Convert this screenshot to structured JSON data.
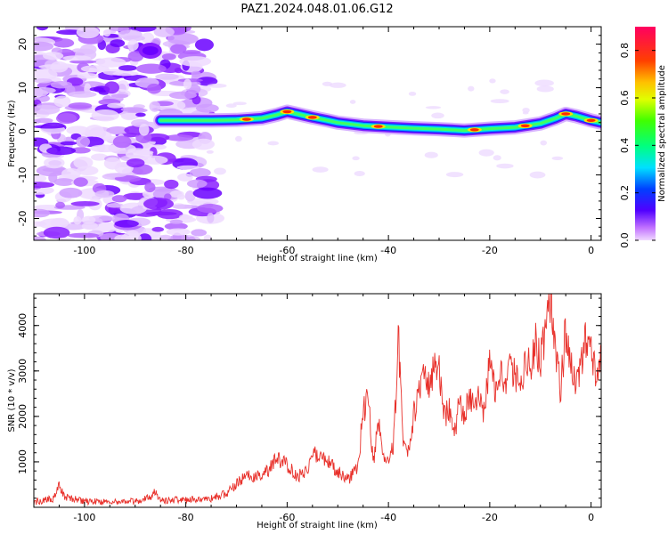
{
  "title": "PAZ1.2024.048.01.06.G12",
  "chart_data": [
    {
      "type": "heatmap",
      "xlabel": "Height of straight line (km)",
      "ylabel": "Frequency (Hz)",
      "xlim": [
        -110,
        2
      ],
      "ylim": [
        -25,
        24
      ],
      "xticks": [
        -100,
        -80,
        -60,
        -40,
        -20,
        0
      ],
      "yticks": [
        -20,
        -10,
        0,
        10,
        20
      ],
      "colorbar": {
        "label": "Normalized spectral amplitude",
        "range": [
          0,
          0.9
        ],
        "ticks": [
          0.0,
          0.2,
          0.4,
          0.6,
          0.8
        ],
        "colormap": "gist_rainbow_r"
      },
      "ridge": {
        "x": [
          -85,
          -80,
          -75,
          -70,
          -65,
          -62,
          -60,
          -58,
          -55,
          -52,
          -50,
          -45,
          -40,
          -35,
          -30,
          -25,
          -20,
          -15,
          -10,
          -7,
          -5,
          -3,
          0,
          2
        ],
        "y": [
          2.5,
          2.5,
          2.5,
          2.6,
          3.0,
          3.8,
          4.5,
          4.0,
          3.2,
          2.5,
          2.0,
          1.3,
          1.0,
          0.7,
          0.5,
          0.2,
          0.6,
          0.9,
          1.8,
          3.0,
          4.0,
          3.5,
          2.5,
          2.0
        ]
      },
      "peaks_x": [
        -68,
        -60,
        -55,
        -42,
        -23,
        -13,
        -5,
        0
      ]
    },
    {
      "type": "line",
      "xlabel": "Height of straight line (km)",
      "ylabel": "SNR (10 * v/v)",
      "xlim": [
        -110,
        2
      ],
      "ylim": [
        0,
        4700
      ],
      "xticks": [
        -100,
        -80,
        -60,
        -40,
        -20,
        0
      ],
      "yticks": [
        1000,
        2000,
        3000,
        4000
      ],
      "color": "#e8302a",
      "series": [
        {
          "x": [
            -110,
            -108,
            -106,
            -105,
            -104,
            -100,
            -95,
            -90,
            -87,
            -86,
            -85,
            -80,
            -75,
            -72,
            -70,
            -68,
            -66,
            -64,
            -62,
            -60,
            -58,
            -56,
            -55,
            -54,
            -52,
            -50,
            -48,
            -46,
            -45,
            -44,
            -43,
            -42,
            -41,
            -40,
            -39,
            -38,
            -37,
            -36,
            -35,
            -34,
            -33,
            -32,
            -31,
            -30,
            -29,
            -28,
            -27,
            -26,
            -25,
            -24,
            -23,
            -22,
            -21,
            -20,
            -19,
            -18,
            -17,
            -16,
            -15,
            -14,
            -13,
            -12,
            -11,
            -10,
            -9,
            -8,
            -7,
            -6,
            -5,
            -4,
            -3,
            -2,
            -1,
            0,
            1,
            2
          ],
          "y": [
            120,
            150,
            200,
            480,
            220,
            130,
            120,
            130,
            220,
            360,
            160,
            160,
            200,
            300,
            500,
            700,
            650,
            800,
            1050,
            950,
            650,
            850,
            1200,
            1100,
            1000,
            800,
            600,
            900,
            2100,
            2450,
            1000,
            1800,
            1200,
            900,
            1400,
            3700,
            1400,
            1200,
            2100,
            2500,
            2800,
            2600,
            3000,
            3100,
            2000,
            2200,
            1500,
            2400,
            1900,
            2500,
            2100,
            2600,
            2000,
            3400,
            2600,
            3000,
            2500,
            3100,
            3000,
            2700,
            3200,
            3100,
            3600,
            3300,
            3800,
            4600,
            3500,
            2600,
            3900,
            3200,
            2600,
            3000,
            3700,
            3500,
            3000,
            3400
          ]
        }
      ]
    }
  ]
}
